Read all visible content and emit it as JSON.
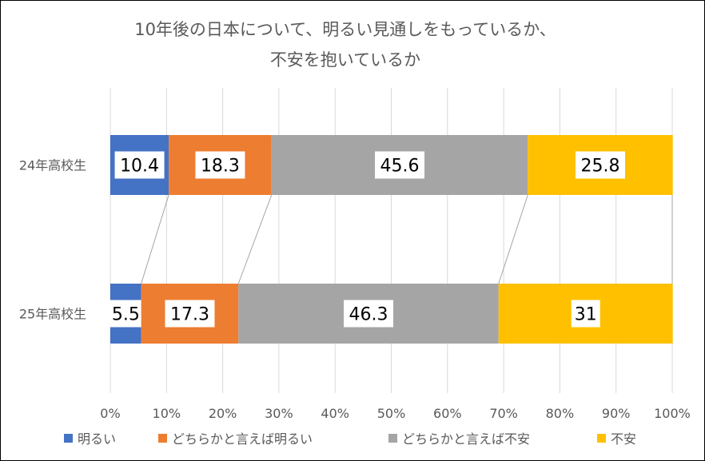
{
  "chart_data": {
    "type": "bar",
    "orientation": "horizontal",
    "stacked": "percent",
    "title": [
      "10年後の日本について、明るい見通しをもっているか、",
      "不安を抱いているか"
    ],
    "categories": [
      "24年高校生",
      "25年高校生"
    ],
    "series": [
      {
        "name": "明るい",
        "color": "#4472C4",
        "values": [
          10.4,
          5.5
        ],
        "labels": [
          "10.4",
          "5.5"
        ]
      },
      {
        "name": "どちらかと言えば明るい",
        "color": "#ED7D31",
        "values": [
          18.3,
          17.3
        ],
        "labels": [
          "18.3",
          "17.3"
        ]
      },
      {
        "name": "どちらかと言えば不安",
        "color": "#A5A5A5",
        "values": [
          45.6,
          46.3
        ],
        "labels": [
          "45.6",
          "46.3"
        ]
      },
      {
        "name": "不安",
        "color": "#FFC000",
        "values": [
          25.8,
          31
        ],
        "labels": [
          "25.8",
          "31"
        ]
      }
    ],
    "xlim": [
      0,
      100
    ],
    "xticks": [
      "0%",
      "10%",
      "20%",
      "30%",
      "40%",
      "50%",
      "60%",
      "70%",
      "80%",
      "90%",
      "100%"
    ],
    "grid": true,
    "series_lines": true,
    "legend": "bottom"
  }
}
